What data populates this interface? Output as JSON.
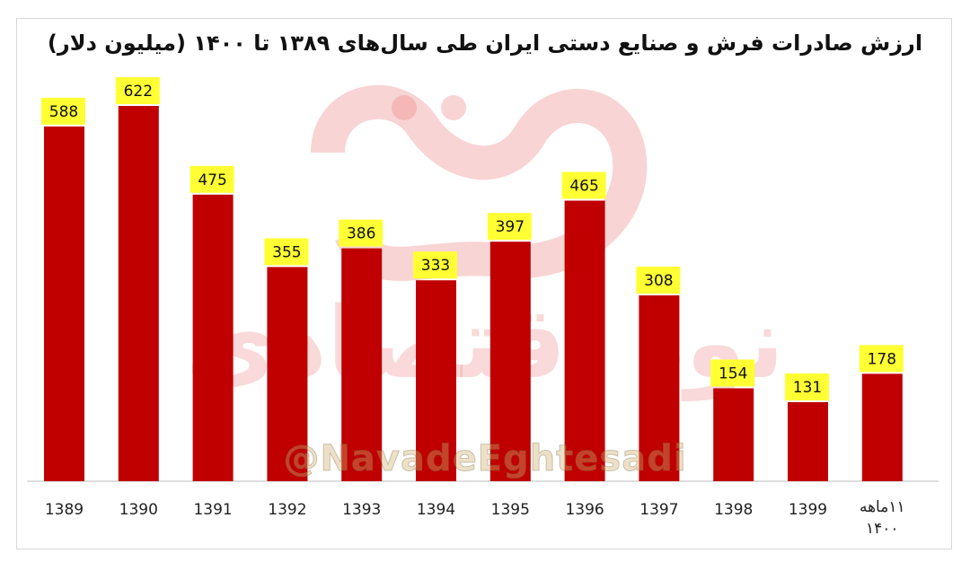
{
  "chart_data": {
    "type": "bar",
    "title": "ارزش صادرات فرش و صنایع دستی ایران طی سال‌های ۱۳۸۹ تا ۱۴۰۰ (میلیون دلار)",
    "categories": [
      "1389",
      "1390",
      "1391",
      "1392",
      "1393",
      "1394",
      "1395",
      "1396",
      "1397",
      "1398",
      "1399",
      "۱۱ماهه ۱۴۰۰"
    ],
    "values": [
      588,
      622,
      475,
      355,
      386,
      333,
      397,
      465,
      308,
      154,
      131,
      178
    ],
    "xlabel": "",
    "ylabel": "",
    "ylim": [
      0,
      700
    ],
    "grid": false,
    "legend": "none",
    "colors": {
      "bar": "#c00000",
      "label_bg": "#ffff33"
    }
  },
  "watermark": {
    "handle": "@NavadeEghtesadi",
    "logo_icon": "navad-eghtesadi-logo-icon",
    "text": "نود اقتصادی"
  }
}
